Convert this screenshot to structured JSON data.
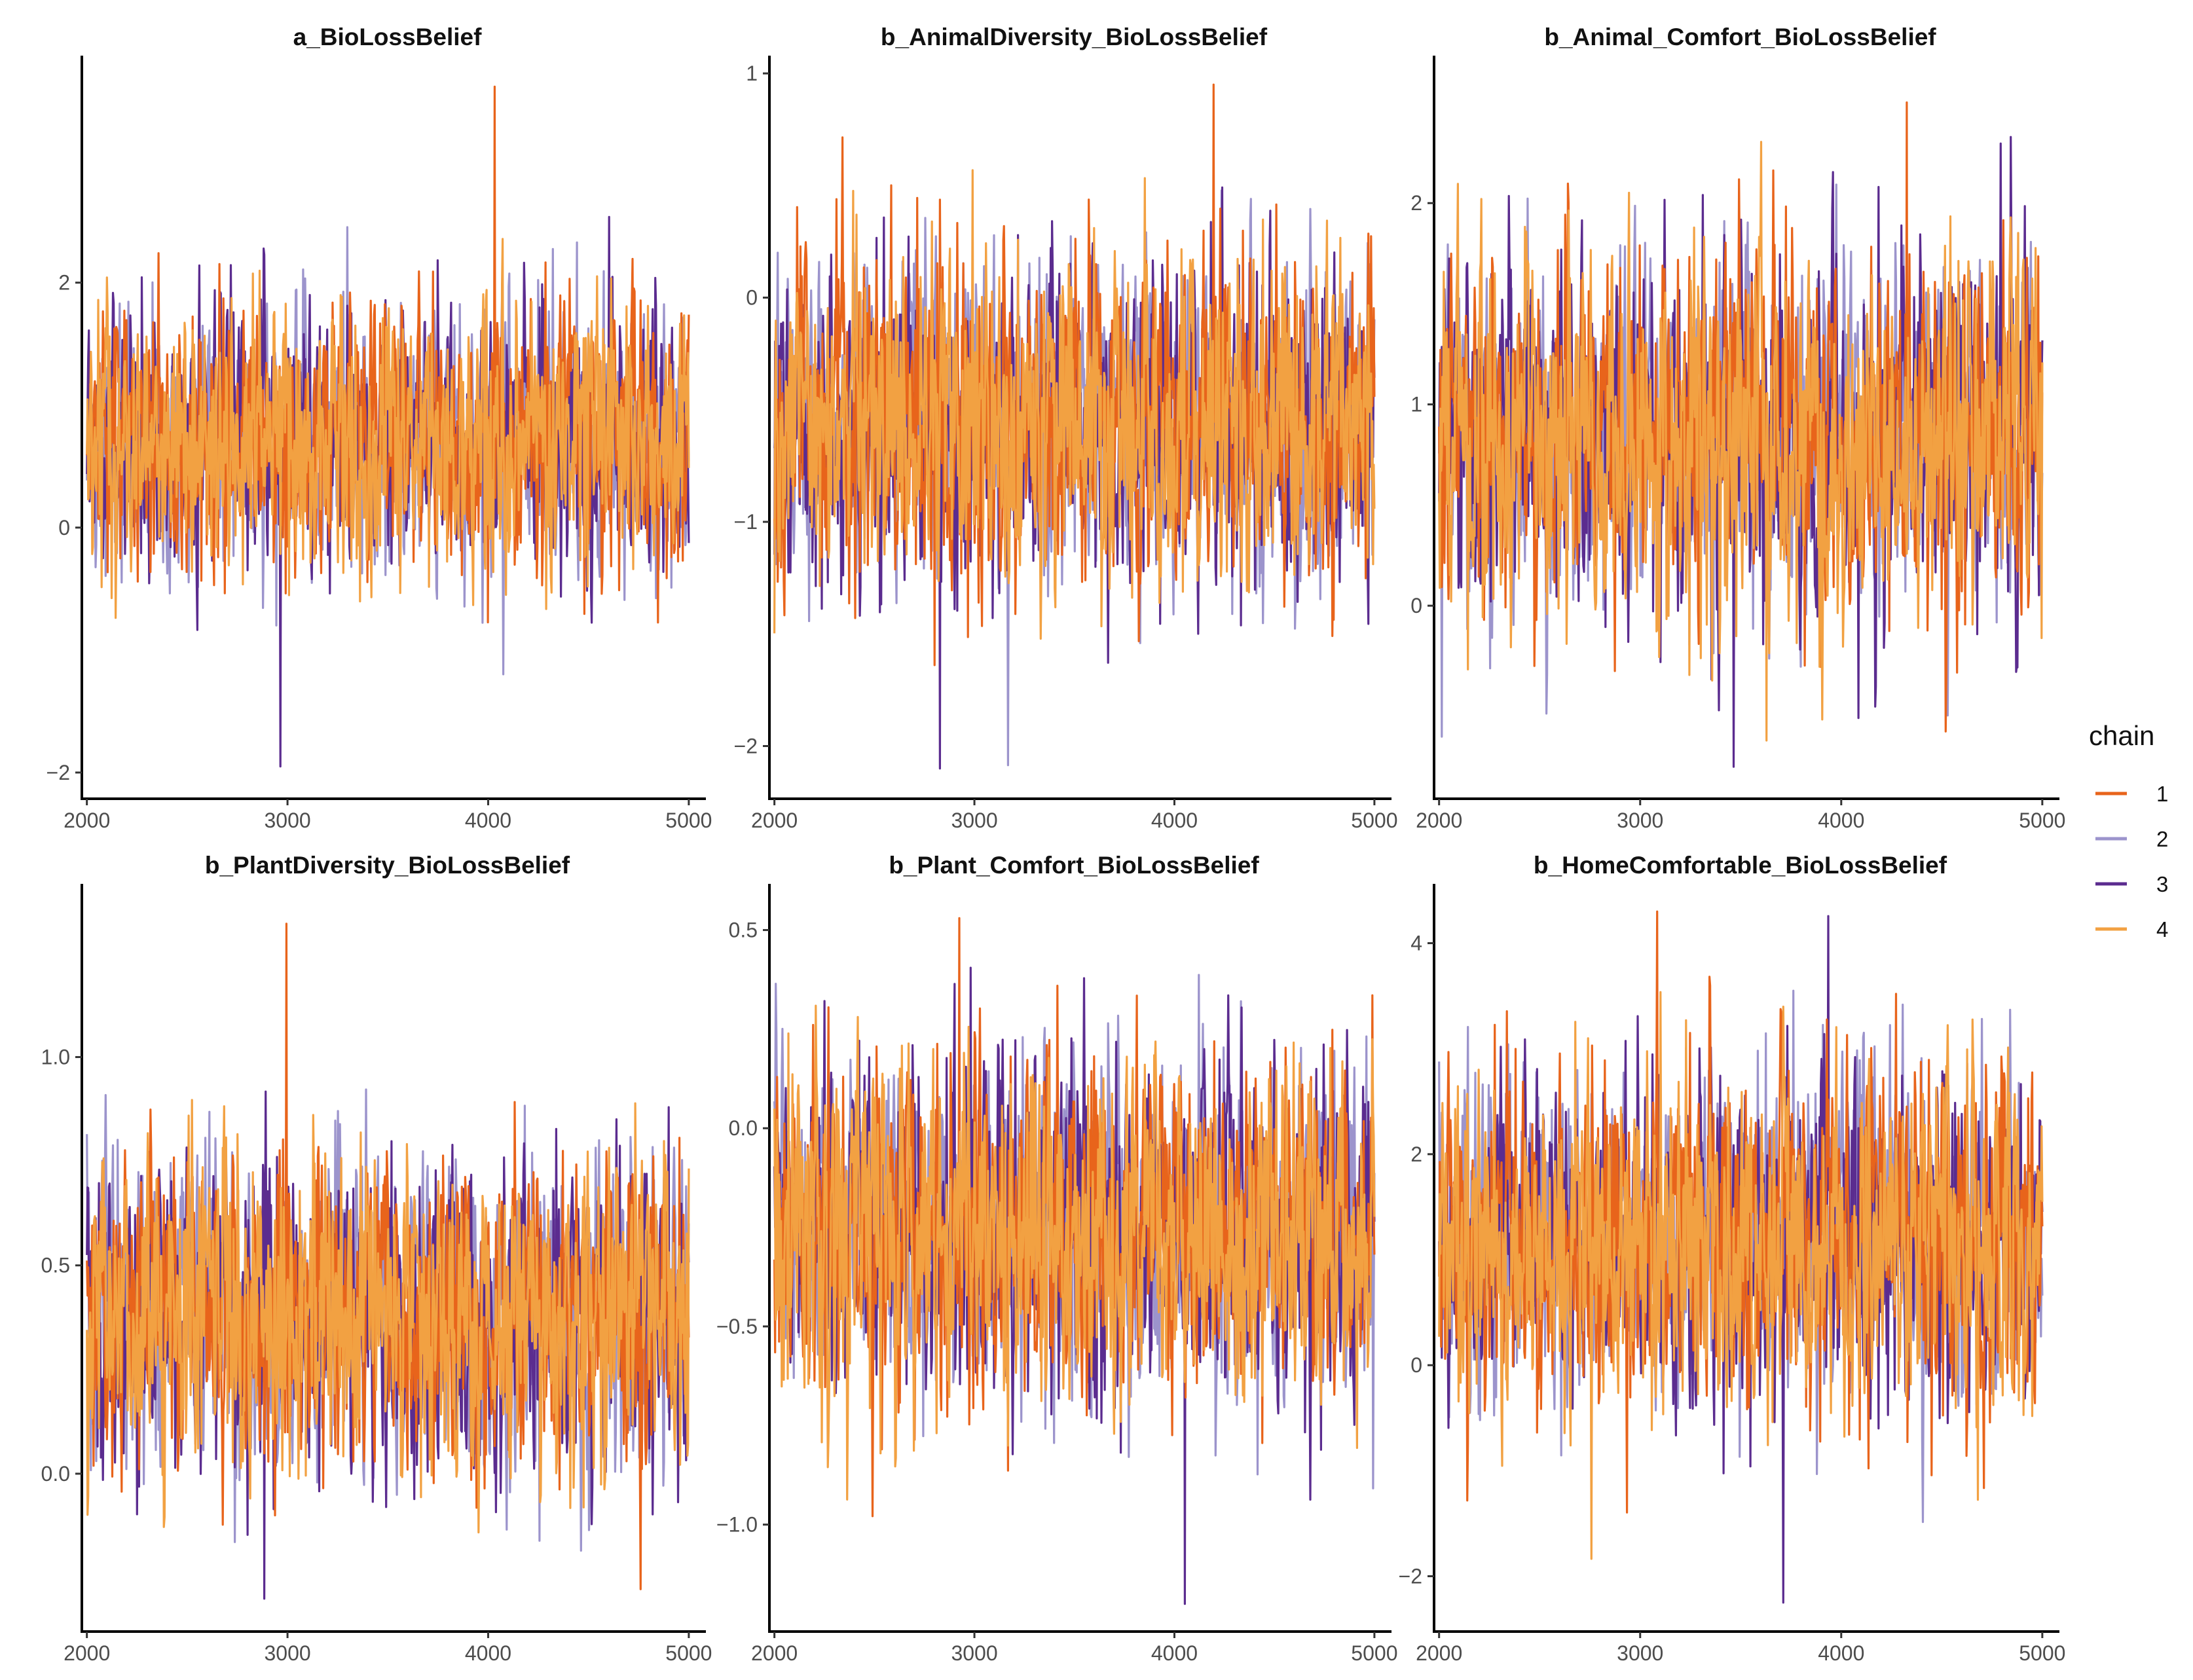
{
  "chart_data": [
    {
      "type": "line",
      "title": "a_BioLossBelief",
      "xlabel": "",
      "ylabel": "",
      "xlim": [
        1975,
        5020
      ],
      "ylim": [
        -2.15,
        3.8
      ],
      "x_ticks": [
        2000,
        3000,
        4000,
        5000
      ],
      "x_tick_labels": [
        "2000",
        "3000",
        "4000",
        "5000"
      ],
      "y_ticks": [
        -2,
        0,
        2
      ],
      "y_tick_labels": [
        "−2",
        "0",
        "2"
      ],
      "grid": false,
      "chain_mean": 0.7,
      "chain_sd": 0.5,
      "chain_min": -1.95,
      "chain_max": 3.6,
      "iterations": [
        2000,
        5000
      ]
    },
    {
      "type": "line",
      "title": "b_AnimalDiversity_BioLossBelief",
      "xlabel": "",
      "ylabel": "",
      "xlim": [
        1975,
        5020
      ],
      "ylim": [
        -2.2,
        1.05
      ],
      "x_ticks": [
        2000,
        3000,
        4000,
        5000
      ],
      "x_tick_labels": [
        "2000",
        "3000",
        "4000",
        "5000"
      ],
      "y_ticks": [
        -2,
        -1,
        0,
        1
      ],
      "y_tick_labels": [
        "−2",
        "−1",
        "0",
        "1"
      ],
      "grid": false,
      "chain_mean": -0.55,
      "chain_sd": 0.33,
      "chain_min": -2.1,
      "chain_max": 0.95,
      "iterations": [
        2000,
        5000
      ]
    },
    {
      "type": "line",
      "title": "b_Animal_Comfort_BioLossBelief",
      "xlabel": "",
      "ylabel": "",
      "xlim": [
        1975,
        5020
      ],
      "ylim": [
        -0.92,
        2.7
      ],
      "x_ticks": [
        2000,
        3000,
        4000,
        5000
      ],
      "x_tick_labels": [
        "2000",
        "3000",
        "4000",
        "5000"
      ],
      "y_ticks": [
        0,
        1,
        2
      ],
      "y_tick_labels": [
        "0",
        "1",
        "2"
      ],
      "grid": false,
      "chain_mean": 0.85,
      "chain_sd": 0.4,
      "chain_min": -0.8,
      "chain_max": 2.5,
      "iterations": [
        2000,
        5000
      ]
    },
    {
      "type": "line",
      "title": "b_PlantDiversity_BioLossBelief",
      "xlabel": "",
      "ylabel": "",
      "xlim": [
        1975,
        5020
      ],
      "ylim": [
        -0.36,
        1.4
      ],
      "x_ticks": [
        2000,
        3000,
        4000,
        5000
      ],
      "x_tick_labels": [
        "2000",
        "3000",
        "4000",
        "5000"
      ],
      "y_ticks": [
        0.0,
        0.5,
        1.0
      ],
      "y_tick_labels": [
        "0.0",
        "0.5",
        "1.0"
      ],
      "grid": false,
      "chain_mean": 0.38,
      "chain_sd": 0.18,
      "chain_min": -0.3,
      "chain_max": 1.32,
      "iterations": [
        2000,
        5000
      ]
    },
    {
      "type": "line",
      "title": "b_Plant_Comfort_BioLossBelief",
      "xlabel": "",
      "ylabel": "",
      "xlim": [
        1975,
        5020
      ],
      "ylim": [
        -1.25,
        0.6
      ],
      "x_ticks": [
        2000,
        3000,
        4000,
        5000
      ],
      "x_tick_labels": [
        "2000",
        "3000",
        "4000",
        "5000"
      ],
      "y_ticks": [
        -1.0,
        -0.5,
        0.0,
        0.5
      ],
      "y_tick_labels": [
        "−1.0",
        "−0.5",
        "0.0",
        "0.5"
      ],
      "grid": false,
      "chain_mean": -0.25,
      "chain_sd": 0.2,
      "chain_min": -1.2,
      "chain_max": 0.53,
      "iterations": [
        2000,
        5000
      ]
    },
    {
      "type": "line",
      "title": "b_HomeComfortable_BioLossBelief",
      "xlabel": "",
      "ylabel": "",
      "xlim": [
        1975,
        5020
      ],
      "ylim": [
        -2.45,
        4.5
      ],
      "x_ticks": [
        2000,
        3000,
        4000,
        5000
      ],
      "x_tick_labels": [
        "2000",
        "3000",
        "4000",
        "5000"
      ],
      "y_ticks": [
        -2,
        0,
        2,
        4
      ],
      "y_tick_labels": [
        "−2",
        "0",
        "2",
        "4"
      ],
      "grid": false,
      "chain_mean": 1.2,
      "chain_sd": 0.72,
      "chain_min": -2.25,
      "chain_max": 4.3,
      "iterations": [
        2000,
        5000
      ]
    }
  ],
  "legend": {
    "title": "chain",
    "position": "right",
    "entries": [
      {
        "label": "1",
        "color": "#e8641b"
      },
      {
        "label": "2",
        "color": "#9c94cc"
      },
      {
        "label": "3",
        "color": "#5b2c8f"
      },
      {
        "label": "4",
        "color": "#f2a142"
      }
    ]
  },
  "draw_order": [
    1,
    2,
    0,
    3
  ]
}
